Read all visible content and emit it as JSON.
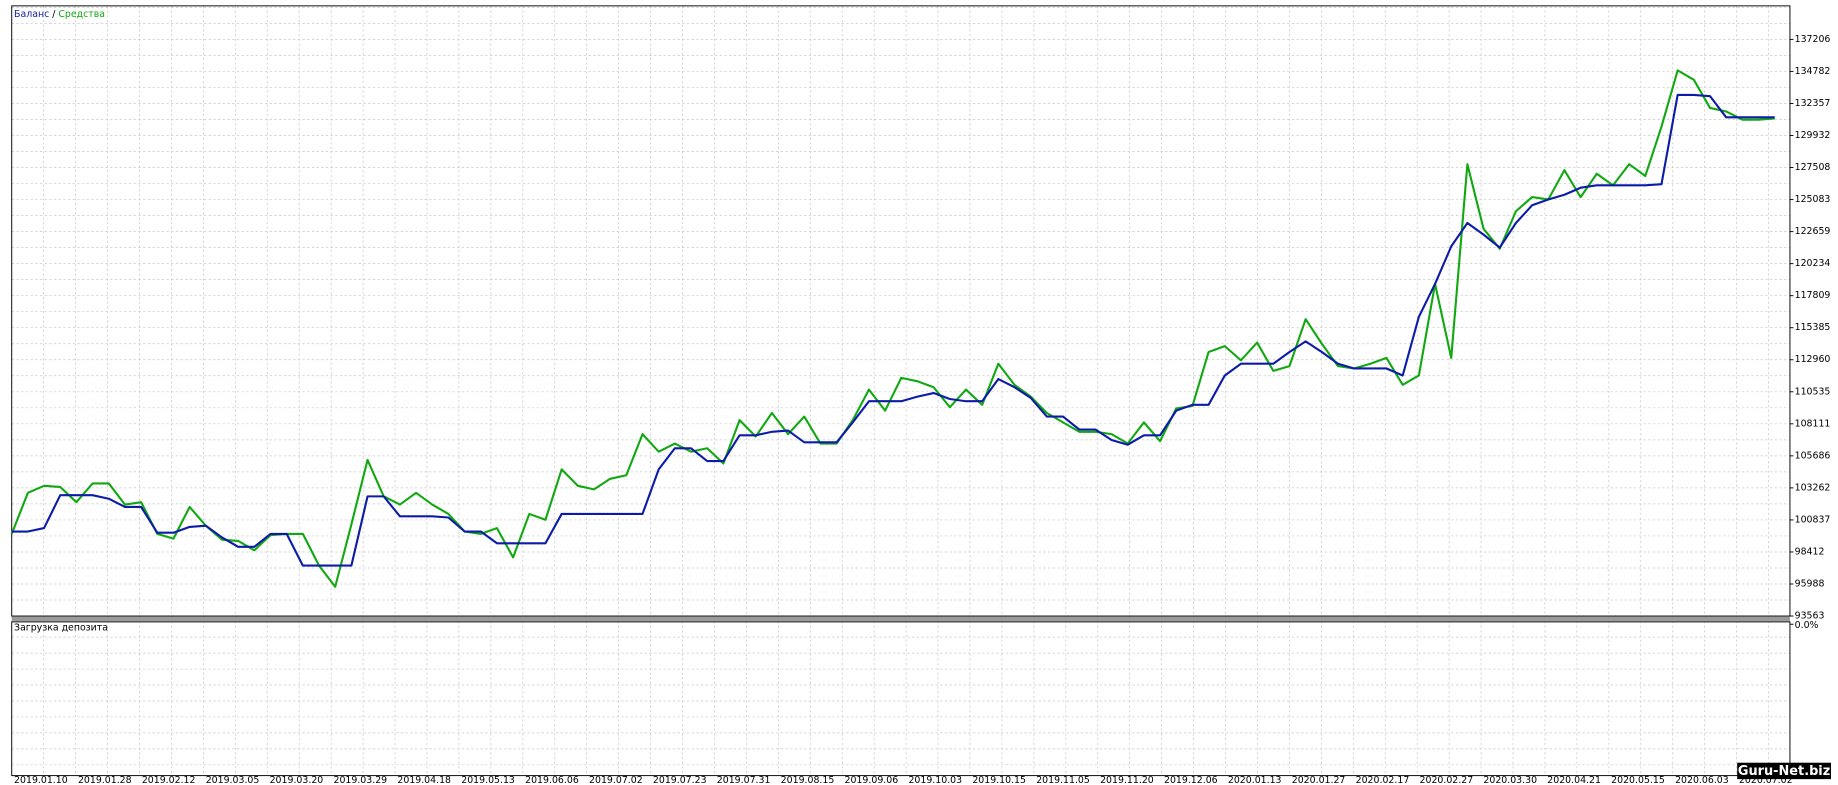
{
  "chart_data": {
    "type": "line",
    "legend_separator": "/",
    "series": [
      {
        "name": "Баланс",
        "color": "#0d1ca8",
        "values": [
          99960,
          99960,
          100220,
          102710,
          102710,
          102710,
          102440,
          101820,
          101820,
          99870,
          99870,
          100310,
          100400,
          99510,
          98800,
          98800,
          99780,
          99780,
          97380,
          97380,
          97380,
          97380,
          102620,
          102620,
          101110,
          101110,
          101110,
          101020,
          99960,
          99960,
          99070,
          99070,
          99070,
          99070,
          101290,
          101290,
          101290,
          101290,
          101290,
          101290,
          104660,
          106260,
          106260,
          105290,
          105290,
          107240,
          107240,
          107510,
          107600,
          106710,
          106710,
          106710,
          108220,
          109820,
          109820,
          109820,
          110170,
          110440,
          109990,
          109820,
          109820,
          111500,
          110880,
          110080,
          108660,
          108660,
          107680,
          107680,
          106890,
          106530,
          107240,
          107240,
          109110,
          109550,
          109550,
          111770,
          112660,
          112660,
          112660,
          113550,
          114350,
          113550,
          112660,
          112300,
          112300,
          112300,
          111770,
          116210,
          118700,
          121540,
          123310,
          122430,
          121450,
          123310,
          124650,
          125090,
          125450,
          125980,
          126160,
          126160,
          126160,
          126160,
          126250,
          133000,
          133000,
          132910,
          131310,
          131310,
          131310,
          131310
        ]
      },
      {
        "name": "Средства",
        "color": "#12a812",
        "values": [
          99780,
          102890,
          103420,
          103330,
          102180,
          103600,
          103600,
          102000,
          102180,
          99780,
          99420,
          101820,
          100400,
          99340,
          99250,
          98540,
          99690,
          99780,
          99780,
          97380,
          95780,
          100490,
          105380,
          102620,
          102000,
          102890,
          102000,
          101290,
          99960,
          99780,
          100220,
          98000,
          101290,
          100850,
          104660,
          103420,
          103150,
          103950,
          104220,
          107330,
          106000,
          106620,
          106000,
          106260,
          105110,
          108390,
          107150,
          108930,
          107330,
          108660,
          106620,
          106620,
          108390,
          110700,
          109110,
          111590,
          111330,
          110880,
          109370,
          110700,
          109550,
          112660,
          111060,
          110170,
          108930,
          108220,
          107510,
          107510,
          107330,
          106620,
          108220,
          106800,
          109280,
          109460,
          113550,
          113990,
          112920,
          114260,
          112120,
          112480,
          116030,
          114170,
          112480,
          112300,
          112660,
          113100,
          111060,
          111770,
          118700,
          113100,
          127760,
          122870,
          121360,
          124200,
          125270,
          125090,
          127310,
          125270,
          127040,
          126160,
          127760,
          126870,
          130600,
          134860,
          134150,
          132020,
          131750,
          131130,
          131130,
          131220
        ]
      }
    ],
    "ylim": [
      93563,
      139744
    ],
    "yticks": [
      93563,
      95988,
      98412,
      100837,
      103262,
      105686,
      108111,
      110535,
      112960,
      115385,
      117809,
      120234,
      122659,
      125083,
      127508,
      129932,
      132357,
      134782,
      137206
    ],
    "grid": true,
    "x_labels": [
      "2019.01.10",
      "2019.01.28",
      "2019.02.12",
      "2019.03.05",
      "2019.03.20",
      "2019.03.29",
      "2019.04.18",
      "2019.05.13",
      "2019.06.06",
      "2019.07.02",
      "2019.07.23",
      "2019.07.31",
      "2019.08.15",
      "2019.09.06",
      "2019.10.03",
      "2019.10.15",
      "2019.11.05",
      "2019.11.20",
      "2019.12.06",
      "2020.01.13",
      "2020.01.27",
      "2020.02.17",
      "2020.02.27",
      "2020.03.30",
      "2020.04.21",
      "2020.05.15",
      "2020.06.03",
      "2020.07.02"
    ],
    "deposit_panel": {
      "title": "Загрузка депозита",
      "yticks": [
        {
          "value": 0,
          "label": "0.0%"
        }
      ]
    },
    "watermark": "Guru-Net.biz"
  }
}
